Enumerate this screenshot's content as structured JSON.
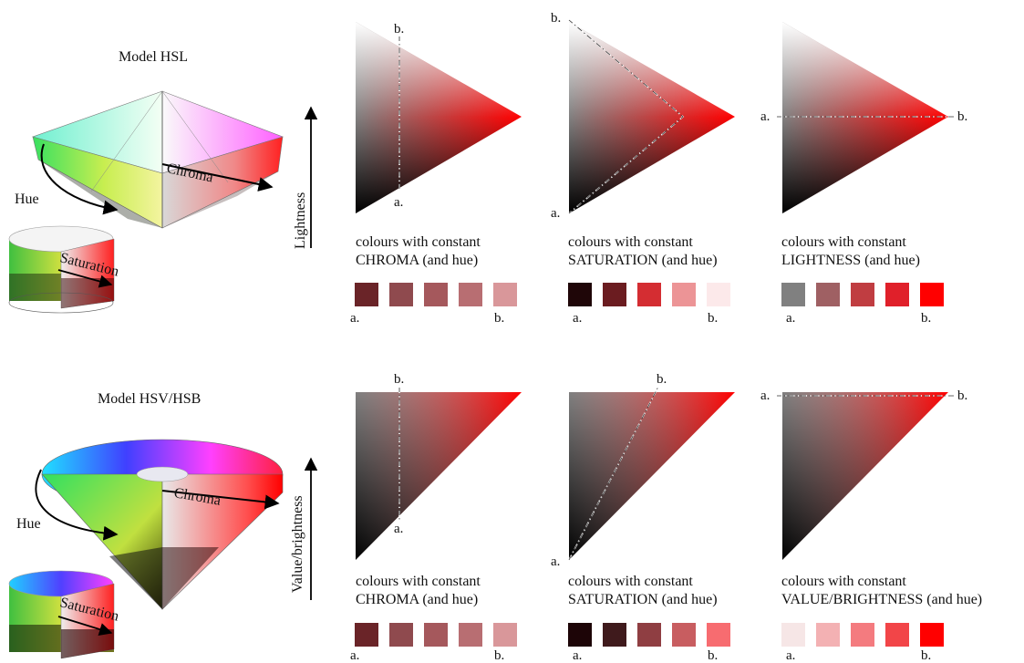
{
  "models": [
    {
      "title": "Model HSL",
      "hue_label": "Hue",
      "chroma_label": "Chroma",
      "saturation_label": "Saturation",
      "axis_label": "Lightness"
    },
    {
      "title": "Model HSV/HSB",
      "hue_label": "Hue",
      "chroma_label": "Chroma",
      "saturation_label": "Saturation",
      "axis_label": "Value/brightness"
    }
  ],
  "panels": [
    {
      "caption_line1": "colours with constant",
      "caption_line2": "CHROMA (and hue)",
      "label_a": "a.",
      "label_b": "b.",
      "swatches": [
        "#6a2428",
        "#8f4a4e",
        "#a5585c",
        "#b86e72",
        "#d9979a"
      ]
    },
    {
      "caption_line1": "colours with constant",
      "caption_line2": "SATURATION (and hue)",
      "label_a": "a.",
      "label_b": "b.",
      "swatches": [
        "#1f0608",
        "#6b1c20",
        "#d42d32",
        "#ec9496",
        "#fce9ea"
      ]
    },
    {
      "caption_line1": "colours with constant",
      "caption_line2": "LIGHTNESS (and hue)",
      "label_a": "a.",
      "label_b": "b.",
      "swatches": [
        "#808080",
        "#9f6063",
        "#c03d41",
        "#e0202a",
        "#ff0000"
      ]
    },
    {
      "caption_line1": "colours with constant",
      "caption_line2": "CHROMA (and hue)",
      "label_a": "a.",
      "label_b": "b.",
      "swatches": [
        "#6a2428",
        "#8f4a4e",
        "#a5585c",
        "#b86e72",
        "#d9979a"
      ]
    },
    {
      "caption_line1": "colours with constant",
      "caption_line2": "SATURATION (and hue)",
      "label_a": "a.",
      "label_b": "b.",
      "swatches": [
        "#1d0507",
        "#3f1a1c",
        "#8f3e42",
        "#c85d60",
        "#f76c70"
      ]
    },
    {
      "caption_line1": "colours with constant",
      "caption_line2": "VALUE/BRIGHTNESS (and hue)",
      "label_a": "a.",
      "label_b": "b.",
      "swatches": [
        "#f6e6e6",
        "#f3b1b3",
        "#f47b7f",
        "#f24548",
        "#ff0000"
      ]
    }
  ],
  "colors": {
    "hue_red": "#ff0000",
    "black": "#000000",
    "white": "#ffffff",
    "gray": "#808080"
  }
}
